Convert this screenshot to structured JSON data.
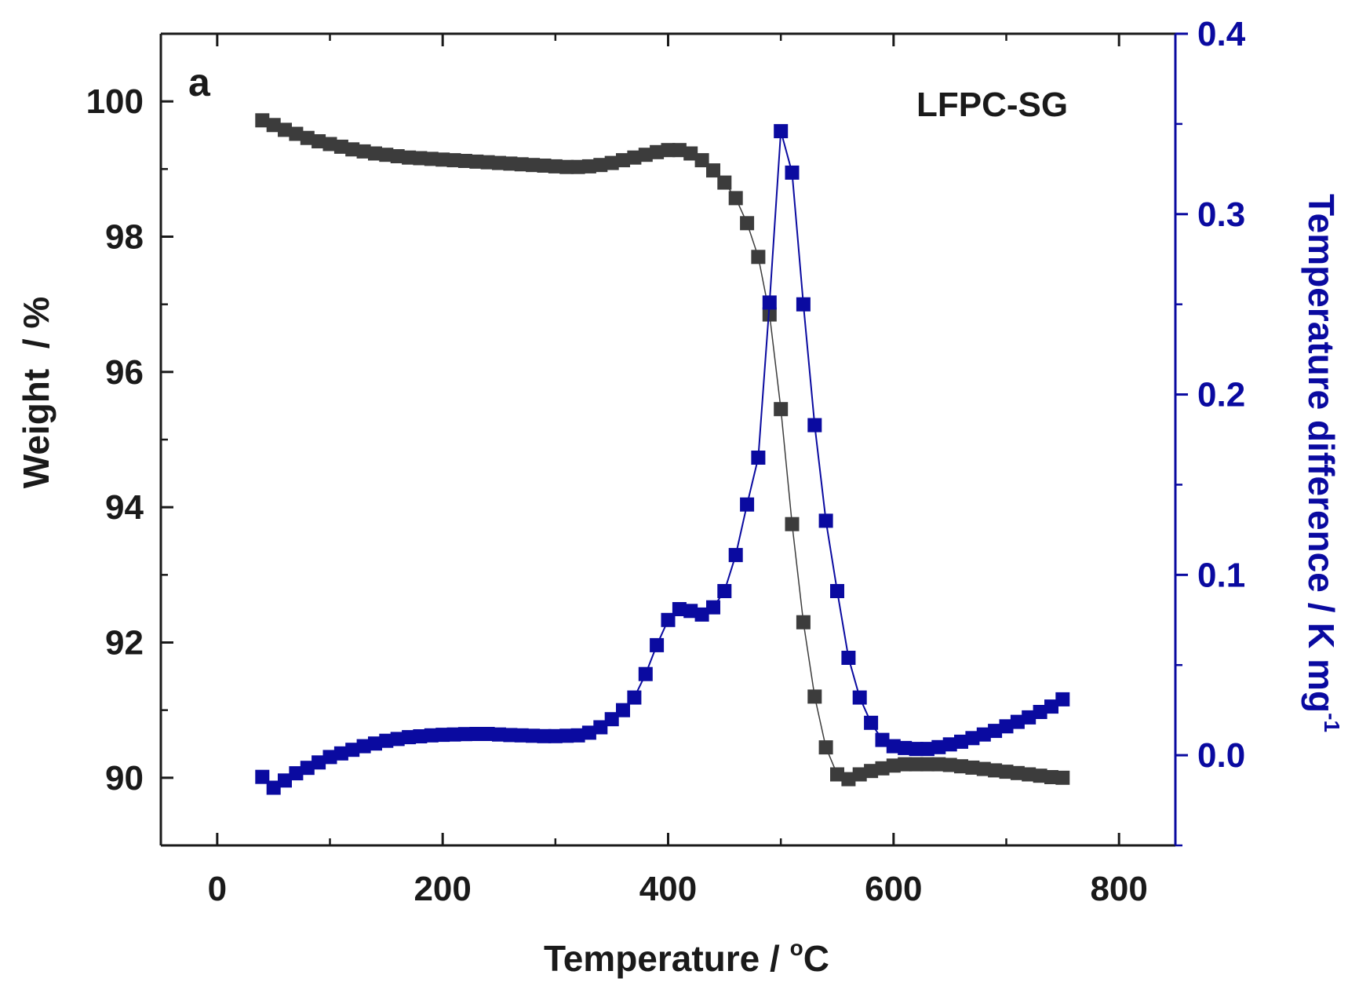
{
  "chart_data": {
    "type": "scatter",
    "panel_label": "a",
    "annotation": "LFPC-SG",
    "xlabel": "Temperature / °C",
    "xlabel_parts": {
      "prefix": "Temperature / ",
      "sup": "o",
      "suffix": "C"
    },
    "ylabel_left": "Weight  / %",
    "ylabel_right": "Temperature difference / K mg-1",
    "ylabel_right_parts": {
      "prefix": "Temperature difference / K mg",
      "sup": "-1"
    },
    "xlim": [
      -50,
      850
    ],
    "ylim_left": [
      89,
      101
    ],
    "ylim_right": [
      -0.05,
      0.4
    ],
    "x_ticks": [
      0,
      200,
      400,
      600,
      800
    ],
    "x_tick_labels": [
      "0",
      "200",
      "400",
      "600",
      "800"
    ],
    "y_left_ticks": [
      90,
      92,
      94,
      96,
      98,
      100
    ],
    "y_left_tick_labels": [
      "90",
      "92",
      "94",
      "96",
      "98",
      "100"
    ],
    "y_right_ticks": [
      0.0,
      0.1,
      0.2,
      0.3,
      0.4
    ],
    "y_right_tick_labels": [
      "0.0",
      "0.1",
      "0.2",
      "0.3",
      "0.4"
    ],
    "grid": false,
    "colors": {
      "weight": "#3c3c3c",
      "dta": "#0a0aa0",
      "frame": "#1a1a1a",
      "right_axis": "#0a0aa0"
    },
    "series": [
      {
        "axis": "left",
        "marker": "square",
        "color": "#3c3c3c",
        "x": [
          40,
          50,
          60,
          70,
          80,
          90,
          100,
          110,
          120,
          130,
          140,
          150,
          160,
          170,
          180,
          190,
          200,
          210,
          220,
          230,
          240,
          250,
          260,
          270,
          280,
          290,
          300,
          310,
          320,
          330,
          340,
          350,
          360,
          370,
          380,
          390,
          400,
          410,
          420,
          430,
          440,
          450,
          460,
          470,
          480,
          490,
          500,
          510,
          520,
          530,
          540,
          550,
          560,
          570,
          580,
          590,
          600,
          610,
          620,
          630,
          640,
          650,
          660,
          670,
          680,
          690,
          700,
          710,
          720,
          730,
          740,
          750
        ],
        "y": [
          99.72,
          99.65,
          99.58,
          99.52,
          99.46,
          99.41,
          99.37,
          99.33,
          99.29,
          99.26,
          99.23,
          99.21,
          99.19,
          99.17,
          99.16,
          99.15,
          99.14,
          99.13,
          99.12,
          99.11,
          99.1,
          99.09,
          99.08,
          99.07,
          99.06,
          99.05,
          99.04,
          99.03,
          99.03,
          99.04,
          99.06,
          99.09,
          99.13,
          99.17,
          99.21,
          99.25,
          99.28,
          99.28,
          99.23,
          99.13,
          98.98,
          98.8,
          98.57,
          98.2,
          97.7,
          96.85,
          95.45,
          93.75,
          92.3,
          91.2,
          90.45,
          90.05,
          89.98,
          90.05,
          90.1,
          90.14,
          90.18,
          90.2,
          90.2,
          90.2,
          90.2,
          90.19,
          90.17,
          90.15,
          90.13,
          90.11,
          90.09,
          90.07,
          90.05,
          90.03,
          90.01,
          90.0
        ]
      },
      {
        "axis": "right",
        "marker": "square",
        "color": "#0a0aa0",
        "x": [
          40,
          50,
          60,
          70,
          80,
          90,
          100,
          110,
          120,
          130,
          140,
          150,
          160,
          170,
          180,
          190,
          200,
          210,
          220,
          230,
          240,
          250,
          260,
          270,
          280,
          290,
          300,
          310,
          320,
          330,
          340,
          350,
          360,
          370,
          380,
          390,
          400,
          410,
          420,
          430,
          440,
          450,
          460,
          470,
          480,
          490,
          500,
          510,
          520,
          530,
          540,
          550,
          560,
          570,
          580,
          590,
          600,
          610,
          620,
          630,
          640,
          650,
          660,
          670,
          680,
          690,
          700,
          710,
          720,
          730,
          740,
          750
        ],
        "y": [
          -0.012,
          -0.018,
          -0.014,
          -0.01,
          -0.007,
          -0.004,
          -0.001,
          0.001,
          0.003,
          0.005,
          0.0065,
          0.008,
          0.009,
          0.01,
          0.0105,
          0.011,
          0.0113,
          0.0115,
          0.0117,
          0.0118,
          0.0118,
          0.0115,
          0.0112,
          0.011,
          0.0108,
          0.0106,
          0.0106,
          0.0108,
          0.011,
          0.0125,
          0.0155,
          0.02,
          0.025,
          0.032,
          0.045,
          0.061,
          0.075,
          0.081,
          0.08,
          0.078,
          0.082,
          0.091,
          0.111,
          0.139,
          0.165,
          0.251,
          0.346,
          0.323,
          0.25,
          0.183,
          0.13,
          0.091,
          0.054,
          0.032,
          0.018,
          0.0085,
          0.005,
          0.004,
          0.0035,
          0.0035,
          0.0045,
          0.006,
          0.0075,
          0.0095,
          0.0115,
          0.0135,
          0.016,
          0.0185,
          0.021,
          0.024,
          0.027,
          0.031
        ]
      }
    ]
  }
}
